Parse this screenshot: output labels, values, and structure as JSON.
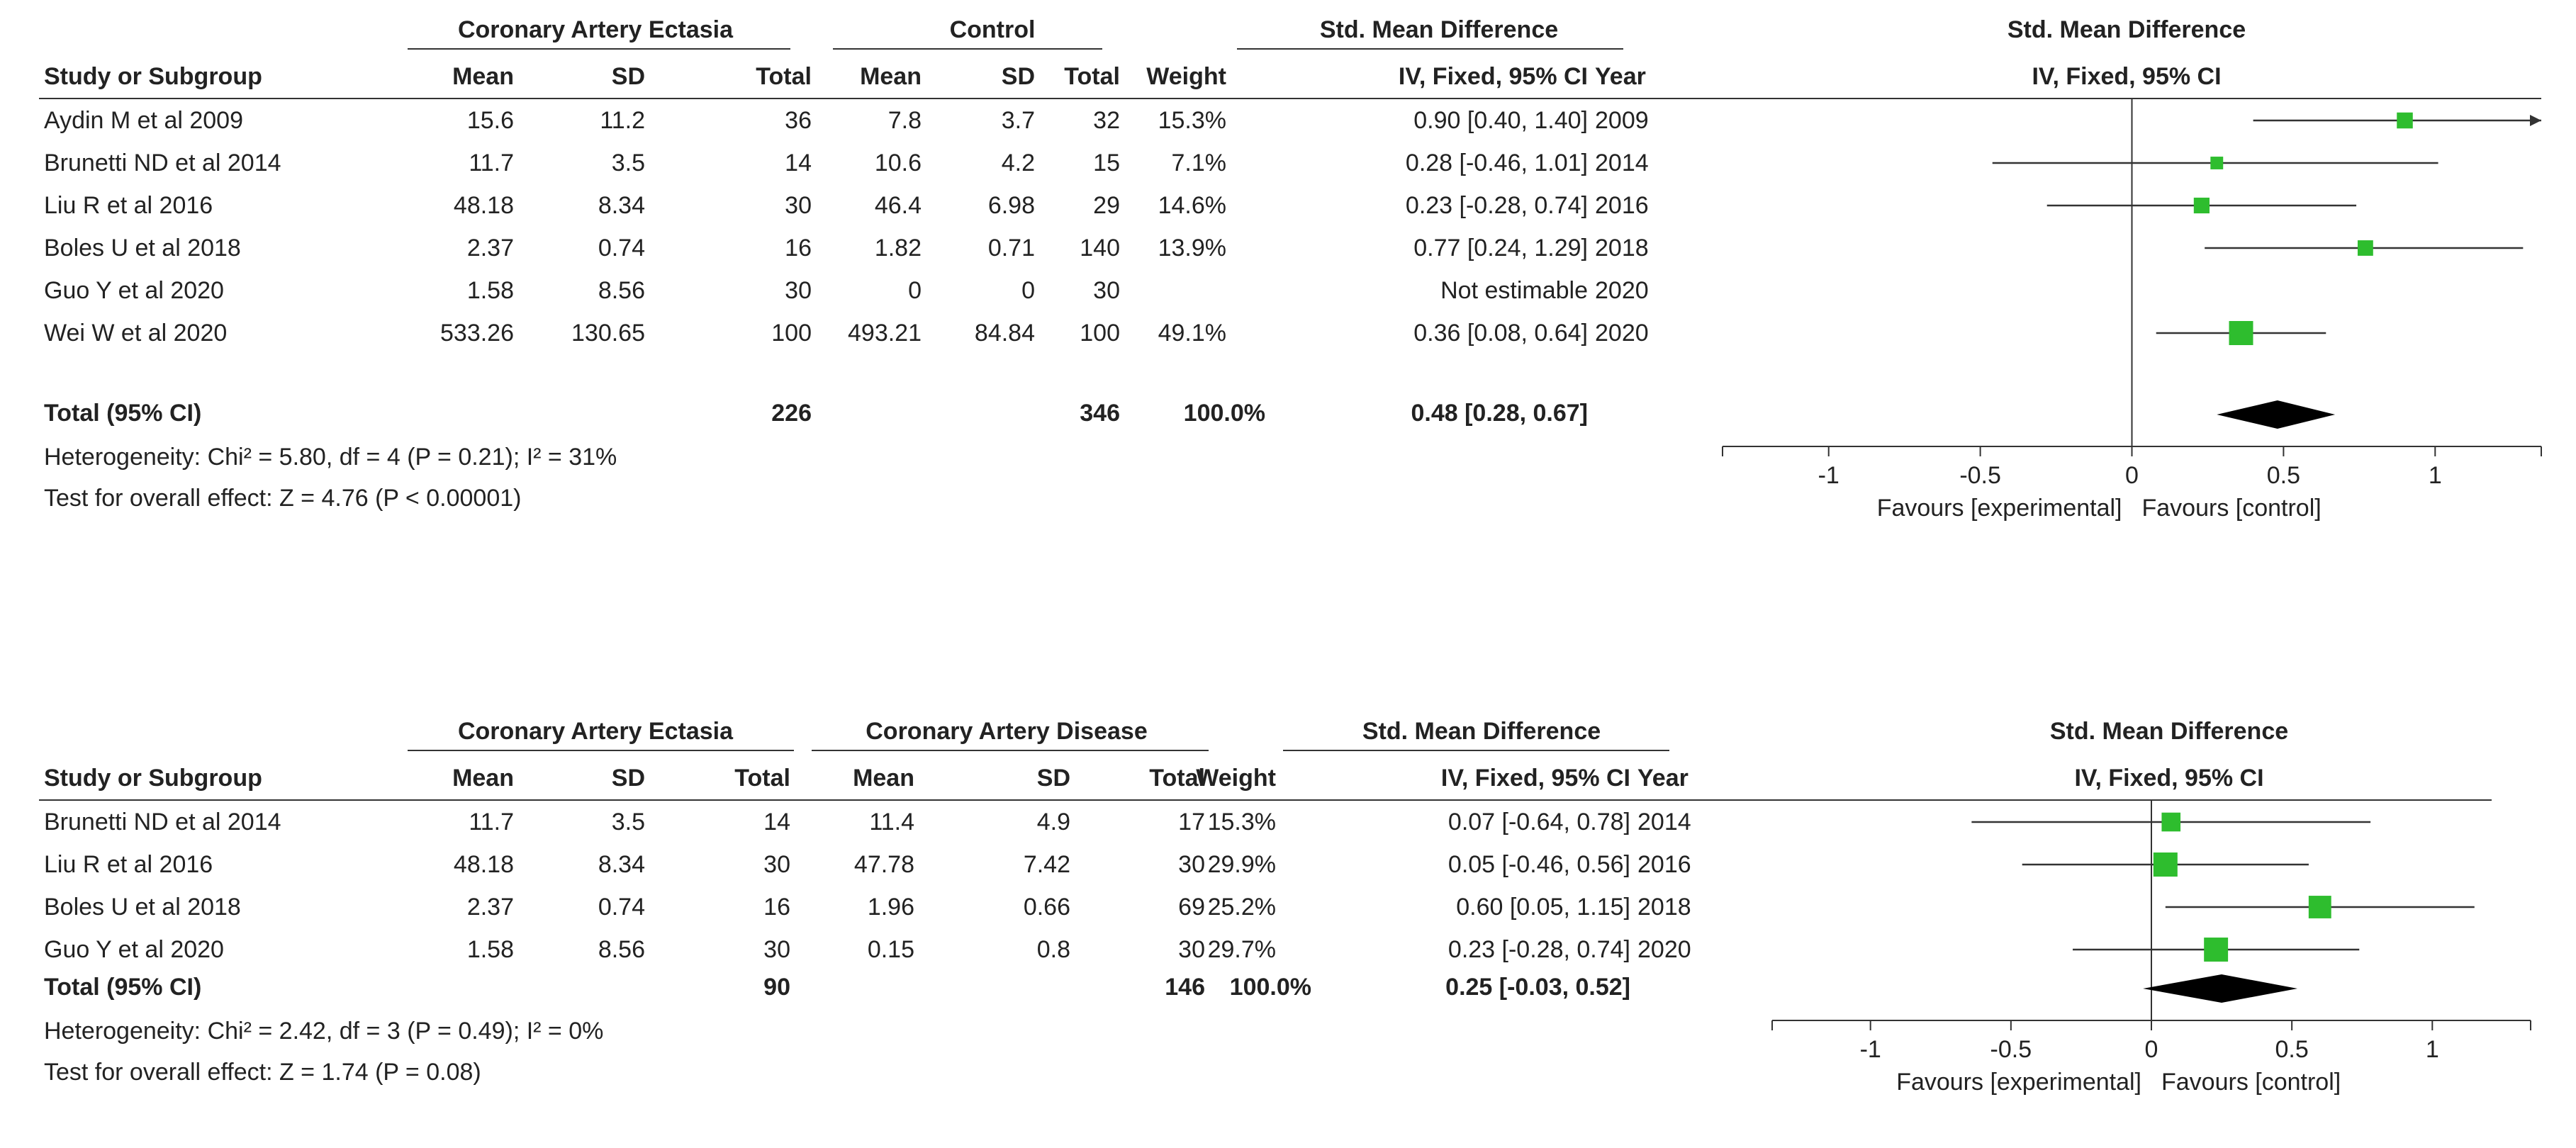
{
  "chart_data": [
    {
      "type": "forest",
      "group1_label": "Coronary Artery Ectasia",
      "group2_label": "Control",
      "effect_header": "Std. Mean Difference",
      "effect_subheader": "IV, Fixed, 95% CI",
      "column_headers": {
        "study": "Study or Subgroup",
        "mean1": "Mean",
        "sd1": "SD",
        "total1": "Total",
        "mean2": "Mean",
        "sd2": "SD",
        "total2": "Total",
        "weight": "Weight",
        "ci": "IV, Fixed, 95% CI",
        "year": "Year"
      },
      "studies": [
        {
          "name": "Aydin M et al 2009",
          "mean1": "15.6",
          "sd1": "11.2",
          "total1": "36",
          "mean2": "7.8",
          "sd2": "3.7",
          "total2": "32",
          "weight": "15.3%",
          "ci": "0.90 [0.40, 1.40]",
          "year": "2009",
          "est": 0.9,
          "lo": 0.4,
          "hi": 1.4,
          "w": 15.3
        },
        {
          "name": "Brunetti ND et al 2014",
          "mean1": "11.7",
          "sd1": "3.5",
          "total1": "14",
          "mean2": "10.6",
          "sd2": "4.2",
          "total2": "15",
          "weight": "7.1%",
          "ci": "0.28 [-0.46, 1.01]",
          "year": "2014",
          "est": 0.28,
          "lo": -0.46,
          "hi": 1.01,
          "w": 7.1
        },
        {
          "name": "Liu R et al 2016",
          "mean1": "48.18",
          "sd1": "8.34",
          "total1": "30",
          "mean2": "46.4",
          "sd2": "6.98",
          "total2": "29",
          "weight": "14.6%",
          "ci": "0.23 [-0.28, 0.74]",
          "year": "2016",
          "est": 0.23,
          "lo": -0.28,
          "hi": 0.74,
          "w": 14.6
        },
        {
          "name": "Boles U et al 2018",
          "mean1": "2.37",
          "sd1": "0.74",
          "total1": "16",
          "mean2": "1.82",
          "sd2": "0.71",
          "total2": "140",
          "weight": "13.9%",
          "ci": "0.77 [0.24, 1.29]",
          "year": "2018",
          "est": 0.77,
          "lo": 0.24,
          "hi": 1.29,
          "w": 13.9
        },
        {
          "name": "Guo Y et al 2020",
          "mean1": "1.58",
          "sd1": "8.56",
          "total1": "30",
          "mean2": "0",
          "sd2": "0",
          "total2": "30",
          "weight": "",
          "ci": "Not estimable",
          "year": "2020",
          "est": null,
          "lo": null,
          "hi": null,
          "w": 0
        },
        {
          "name": "Wei W et al 2020",
          "mean1": "533.26",
          "sd1": "130.65",
          "total1": "100",
          "mean2": "493.21",
          "sd2": "84.84",
          "total2": "100",
          "weight": "49.1%",
          "ci": "0.36 [0.08, 0.64]",
          "year": "2020",
          "est": 0.36,
          "lo": 0.08,
          "hi": 0.64,
          "w": 49.1
        }
      ],
      "total": {
        "label": "Total (95% CI)",
        "total1": "226",
        "total2": "346",
        "weight": "100.0%",
        "ci": "0.48 [0.28, 0.67]",
        "est": 0.48,
        "lo": 0.28,
        "hi": 0.67
      },
      "heterogeneity": "Heterogeneity: Chi² = 5.80, df = 4 (P = 0.21); I² = 31%",
      "overall_effect": "Test for overall effect: Z = 4.76 (P < 0.00001)",
      "axis": {
        "ticks": [
          -1,
          -0.5,
          0,
          0.5,
          1
        ],
        "tick_labels": [
          "-1",
          "-0.5",
          "0",
          "0.5",
          "1"
        ],
        "xlim": [
          -1.35,
          1.35
        ],
        "left_label": "Favours [experimental]",
        "right_label": "Favours [control]"
      },
      "colors": {
        "marker": "#2ebd2e",
        "diamond": "#000000",
        "line": "#333333"
      }
    },
    {
      "type": "forest",
      "group1_label": "Coronary Artery Ectasia",
      "group2_label": "Coronary Artery Disease",
      "effect_header": "Std. Mean Difference",
      "effect_subheader": "IV, Fixed, 95% CI",
      "column_headers": {
        "study": "Study or Subgroup",
        "mean1": "Mean",
        "sd1": "SD",
        "total1": "Total",
        "mean2": "Mean",
        "sd2": "SD",
        "total2": "Total",
        "weight": "Weight",
        "ci": "IV, Fixed, 95% CI",
        "year": "Year"
      },
      "studies": [
        {
          "name": "Brunetti ND et al 2014",
          "mean1": "11.7",
          "sd1": "3.5",
          "total1": "14",
          "mean2": "11.4",
          "sd2": "4.9",
          "total2": "17",
          "weight": "15.3%",
          "ci": "0.07 [-0.64, 0.78]",
          "year": "2014",
          "est": 0.07,
          "lo": -0.64,
          "hi": 0.78,
          "w": 15.3
        },
        {
          "name": "Liu R et al 2016",
          "mean1": "48.18",
          "sd1": "8.34",
          "total1": "30",
          "mean2": "47.78",
          "sd2": "7.42",
          "total2": "30",
          "weight": "29.9%",
          "ci": "0.05 [-0.46, 0.56]",
          "year": "2016",
          "est": 0.05,
          "lo": -0.46,
          "hi": 0.56,
          "w": 29.9
        },
        {
          "name": "Boles U et al 2018",
          "mean1": "2.37",
          "sd1": "0.74",
          "total1": "16",
          "mean2": "1.96",
          "sd2": "0.66",
          "total2": "69",
          "weight": "25.2%",
          "ci": "0.60 [0.05, 1.15]",
          "year": "2018",
          "est": 0.6,
          "lo": 0.05,
          "hi": 1.15,
          "w": 25.2
        },
        {
          "name": "Guo Y et al 2020",
          "mean1": "1.58",
          "sd1": "8.56",
          "total1": "30",
          "mean2": "0.15",
          "sd2": "0.8",
          "total2": "30",
          "weight": "29.7%",
          "ci": "0.23 [-0.28, 0.74]",
          "year": "2020",
          "est": 0.23,
          "lo": -0.28,
          "hi": 0.74,
          "w": 29.7
        }
      ],
      "total": {
        "label": "Total (95% CI)",
        "total1": "90",
        "total2": "146",
        "weight": "100.0%",
        "ci": "0.25 [-0.03, 0.52]",
        "est": 0.25,
        "lo": -0.03,
        "hi": 0.52
      },
      "heterogeneity": "Heterogeneity: Chi² = 2.42, df = 3 (P = 0.49); I² = 0%",
      "overall_effect": "Test for overall effect: Z = 1.74 (P = 0.08)",
      "axis": {
        "ticks": [
          -1,
          -0.5,
          0,
          0.5,
          1
        ],
        "tick_labels": [
          "-1",
          "-0.5",
          "0",
          "0.5",
          "1"
        ],
        "xlim": [
          -1.35,
          1.35
        ],
        "left_label": "Favours [experimental]",
        "right_label": "Favours [control]"
      },
      "colors": {
        "marker": "#2ebd2e",
        "diamond": "#000000",
        "line": "#333333"
      }
    }
  ]
}
